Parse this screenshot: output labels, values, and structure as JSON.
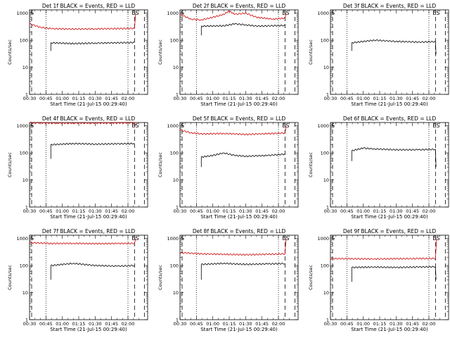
{
  "figure": {
    "x_tick_labels": [
      "00:30",
      "00:45",
      "01:00",
      "01:15",
      "01:30",
      "01:45",
      "02:00"
    ],
    "y_tick_labels": [
      "1",
      "10",
      "100",
      "1000"
    ],
    "ylabel": "Counts/sec",
    "xlabel": "Start Time (21-Jul-15 00:29:40)",
    "marker_left": "S",
    "marker_right": "ES",
    "colors": {
      "events": "#000000",
      "lld": "#cc0000"
    }
  },
  "chart_data": [
    {
      "type": "line",
      "title": "Det 1f BLACK = Events, RED = LLD",
      "xlabel": "Start Time (21-Jul-15 00:29:40)",
      "ylabel": "Counts/sec",
      "x_range_minutes": [
        0,
        100
      ],
      "ylim": [
        1,
        1000
      ],
      "log_y": true,
      "series": [
        {
          "name": "Events",
          "color": "#000000",
          "points": [
            [
              19.5,
              40
            ],
            [
              19.5,
              80
            ],
            [
              40,
              75
            ],
            [
              60,
              78
            ],
            [
              80,
              80
            ],
            [
              96,
              82
            ]
          ]
        },
        {
          "name": "LLD",
          "color": "#cc0000",
          "points": [
            [
              0,
              400
            ],
            [
              10,
              300
            ],
            [
              20,
              265
            ],
            [
              40,
              258
            ],
            [
              60,
              262
            ],
            [
              80,
              268
            ],
            [
              96,
              272
            ],
            [
              97,
              1000
            ]
          ]
        }
      ]
    },
    {
      "type": "line",
      "title": "Det 2f BLACK = Events, RED = LLD",
      "xlabel": "Start Time (21-Jul-15 00:29:40)",
      "ylabel": "Counts/sec",
      "x_range_minutes": [
        0,
        100
      ],
      "ylim": [
        1,
        1000
      ],
      "log_y": true,
      "series": [
        {
          "name": "Events",
          "color": "#000000",
          "points": [
            [
              19.5,
              150
            ],
            [
              19.5,
              330
            ],
            [
              40,
              340
            ],
            [
              50,
              400
            ],
            [
              60,
              370
            ],
            [
              70,
              330
            ],
            [
              96,
              350
            ]
          ]
        },
        {
          "name": "LLD",
          "color": "#cc0000",
          "points": [
            [
              0,
              900
            ],
            [
              10,
              600
            ],
            [
              19.5,
              560
            ],
            [
              30,
              700
            ],
            [
              40,
              900
            ],
            [
              45,
              1200
            ],
            [
              50,
              900
            ],
            [
              60,
              1000
            ],
            [
              70,
              700
            ],
            [
              85,
              600
            ],
            [
              96,
              650
            ],
            [
              97,
              1000
            ]
          ]
        }
      ]
    },
    {
      "type": "line",
      "title": "Det 3f BLACK = Events, RED = LLD",
      "xlabel": "Start Time (21-Jul-15 00:29:40)",
      "ylabel": "Counts/sec",
      "x_range_minutes": [
        0,
        100
      ],
      "ylim": [
        1,
        1000
      ],
      "log_y": true,
      "series": [
        {
          "name": "Events",
          "color": "#000000",
          "points": [
            [
              19.5,
              40
            ],
            [
              19.5,
              80
            ],
            [
              40,
              100
            ],
            [
              60,
              90
            ],
            [
              80,
              85
            ],
            [
              96,
              88
            ],
            [
              96.5,
              30
            ]
          ]
        },
        {
          "name": "LLD",
          "color": "#cc0000",
          "points": []
        }
      ]
    },
    {
      "type": "line",
      "title": "Det 4f BLACK = Events, RED = LLD",
      "xlabel": "Start Time (21-Jul-15 00:29:40)",
      "ylabel": "Counts/sec",
      "x_range_minutes": [
        0,
        100
      ],
      "ylim": [
        1,
        1000
      ],
      "log_y": true,
      "series": [
        {
          "name": "Events",
          "color": "#000000",
          "points": [
            [
              19.5,
              60
            ],
            [
              19.5,
              200
            ],
            [
              40,
              220
            ],
            [
              60,
              210
            ],
            [
              80,
              215
            ],
            [
              96,
              220
            ]
          ]
        },
        {
          "name": "LLD",
          "color": "#cc0000",
          "points": [
            [
              0,
              1300
            ],
            [
              20,
              1250
            ],
            [
              40,
              1250
            ],
            [
              60,
              1260
            ],
            [
              80,
              1270
            ],
            [
              96,
              1300
            ],
            [
              97,
              1000
            ]
          ]
        }
      ]
    },
    {
      "type": "line",
      "title": "Det 5f BLACK = Events, RED = LLD",
      "xlabel": "Start Time (21-Jul-15 00:29:40)",
      "ylabel": "Counts/sec",
      "x_range_minutes": [
        0,
        100
      ],
      "ylim": [
        1,
        1000
      ],
      "log_y": true,
      "series": [
        {
          "name": "Events",
          "color": "#000000",
          "points": [
            [
              19.5,
              30
            ],
            [
              19.5,
              70
            ],
            [
              30,
              80
            ],
            [
              40,
              100
            ],
            [
              50,
              80
            ],
            [
              60,
              75
            ],
            [
              80,
              80
            ],
            [
              96,
              90
            ]
          ]
        },
        {
          "name": "LLD",
          "color": "#cc0000",
          "points": [
            [
              0,
              700
            ],
            [
              10,
              550
            ],
            [
              20,
              500
            ],
            [
              40,
              520
            ],
            [
              60,
              480
            ],
            [
              80,
              510
            ],
            [
              96,
              540
            ],
            [
              97,
              1000
            ]
          ]
        }
      ]
    },
    {
      "type": "line",
      "title": "Det 6f BLACK = Events, RED = LLD",
      "xlabel": "Start Time (21-Jul-15 00:29:40)",
      "ylabel": "Counts/sec",
      "x_range_minutes": [
        0,
        100
      ],
      "ylim": [
        1,
        1000
      ],
      "log_y": true,
      "series": [
        {
          "name": "Events",
          "color": "#000000",
          "points": [
            [
              19.5,
              50
            ],
            [
              19.5,
              120
            ],
            [
              30,
              150
            ],
            [
              40,
              140
            ],
            [
              60,
              130
            ],
            [
              80,
              130
            ],
            [
              96,
              135
            ],
            [
              96.5,
              30
            ]
          ]
        },
        {
          "name": "LLD",
          "color": "#cc0000",
          "points": []
        }
      ]
    },
    {
      "type": "line",
      "title": "Det 7f BLACK = Events, RED = LLD",
      "xlabel": "Start Time (21-Jul-15 00:29:40)",
      "ylabel": "Counts/sec",
      "x_range_minutes": [
        0,
        100
      ],
      "ylim": [
        1,
        1000
      ],
      "log_y": true,
      "series": [
        {
          "name": "Events",
          "color": "#000000",
          "points": [
            [
              19.5,
              30
            ],
            [
              19.5,
              100
            ],
            [
              40,
              120
            ],
            [
              60,
              100
            ],
            [
              80,
              95
            ],
            [
              96,
              100
            ]
          ]
        },
        {
          "name": "LLD",
          "color": "#cc0000",
          "points": [
            [
              0,
              700
            ],
            [
              20,
              650
            ],
            [
              40,
              660
            ],
            [
              60,
              640
            ],
            [
              80,
              650
            ],
            [
              96,
              660
            ],
            [
              97,
              1000
            ]
          ]
        }
      ]
    },
    {
      "type": "line",
      "title": "Det 8f BLACK = Events, RED = LLD",
      "xlabel": "Start Time (21-Jul-15 00:29:40)",
      "ylabel": "Counts/sec",
      "x_range_minutes": [
        0,
        100
      ],
      "ylim": [
        1,
        1000
      ],
      "log_y": true,
      "series": [
        {
          "name": "Events",
          "color": "#000000",
          "points": [
            [
              19.5,
              30
            ],
            [
              19.5,
              110
            ],
            [
              40,
              120
            ],
            [
              60,
              110
            ],
            [
              80,
              115
            ],
            [
              96,
              118
            ]
          ]
        },
        {
          "name": "LLD",
          "color": "#cc0000",
          "points": [
            [
              0,
              300
            ],
            [
              20,
              270
            ],
            [
              40,
              260
            ],
            [
              60,
              250
            ],
            [
              80,
              260
            ],
            [
              96,
              270
            ],
            [
              97,
              1000
            ]
          ]
        }
      ]
    },
    {
      "type": "line",
      "title": "Det 9f BLACK = Events, RED = LLD",
      "xlabel": "Start Time (21-Jul-15 00:29:40)",
      "ylabel": "Counts/sec",
      "x_range_minutes": [
        0,
        100
      ],
      "ylim": [
        1,
        1000
      ],
      "log_y": true,
      "series": [
        {
          "name": "Events",
          "color": "#000000",
          "points": [
            [
              19.5,
              25
            ],
            [
              19.5,
              85
            ],
            [
              40,
              88
            ],
            [
              60,
              85
            ],
            [
              80,
              88
            ],
            [
              96,
              90
            ],
            [
              96.5,
              30
            ]
          ]
        },
        {
          "name": "LLD",
          "color": "#cc0000",
          "points": [
            [
              0,
              180
            ],
            [
              20,
              178
            ],
            [
              40,
              175
            ],
            [
              60,
              178
            ],
            [
              80,
              180
            ],
            [
              96,
              182
            ],
            [
              97,
              1000
            ]
          ]
        }
      ]
    }
  ]
}
